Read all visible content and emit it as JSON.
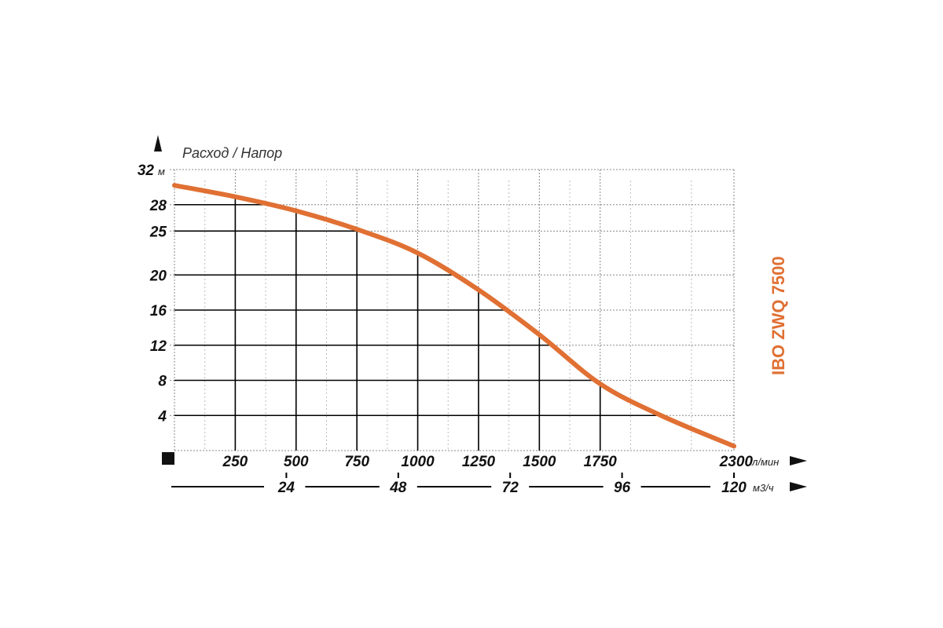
{
  "chart_data": {
    "type": "line",
    "title": "",
    "ylabel": "Расход / Напор",
    "y_unit": "м",
    "x_unit": "л/мин",
    "x2_unit": "м3/ч",
    "model": "IBO ZWQ 7500",
    "colors": {
      "curve": "#e07033",
      "grid": "#888888",
      "solid": "#000000"
    },
    "xlim": [
      0,
      2300
    ],
    "ylim": [
      0,
      32
    ],
    "x_ticks": [
      "250",
      "500",
      "750",
      "1000",
      "1250",
      "1500",
      "1750",
      "2300"
    ],
    "y_ticks": [
      "4",
      "8",
      "12",
      "16",
      "20",
      "25",
      "28",
      "32"
    ],
    "x2_ticks": [
      "24",
      "48",
      "72",
      "96",
      "120"
    ],
    "series": [
      {
        "x": [
          0,
          250,
          500,
          750,
          1000,
          1250,
          1500,
          1750,
          2000,
          2300
        ],
        "y": [
          30.2,
          28.9,
          27.3,
          25.2,
          22.5,
          18.3,
          13.2,
          7.6,
          4.0,
          0.5
        ]
      }
    ]
  }
}
